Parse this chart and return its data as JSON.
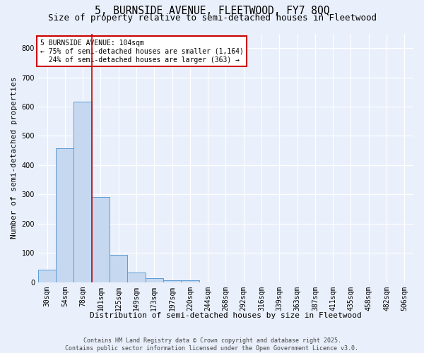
{
  "title1": "5, BURNSIDE AVENUE, FLEETWOOD, FY7 8QQ",
  "title2": "Size of property relative to semi-detached houses in Fleetwood",
  "xlabel": "Distribution of semi-detached houses by size in Fleetwood",
  "ylabel": "Number of semi-detached properties",
  "bar_labels": [
    "30sqm",
    "54sqm",
    "78sqm",
    "101sqm",
    "125sqm",
    "149sqm",
    "173sqm",
    "197sqm",
    "220sqm",
    "244sqm",
    "268sqm",
    "292sqm",
    "316sqm",
    "339sqm",
    "363sqm",
    "387sqm",
    "411sqm",
    "435sqm",
    "458sqm",
    "482sqm",
    "506sqm"
  ],
  "bar_values": [
    43,
    458,
    617,
    290,
    93,
    33,
    13,
    7,
    7,
    0,
    0,
    0,
    0,
    0,
    0,
    0,
    0,
    0,
    0,
    0,
    0
  ],
  "bar_color": "#c5d8f0",
  "bar_edge_color": "#5b9bd5",
  "background_color": "#eaf0fb",
  "grid_color": "#ffffff",
  "vline_x_index": 2.5,
  "vline_color": "#cc0000",
  "annotation_text": "5 BURNSIDE AVENUE: 104sqm\n← 75% of semi-detached houses are smaller (1,164)\n  24% of semi-detached houses are larger (363) →",
  "annotation_box_facecolor": "#ffffff",
  "annotation_box_edgecolor": "#cc0000",
  "footer1": "Contains HM Land Registry data © Crown copyright and database right 2025.",
  "footer2": "Contains public sector information licensed under the Open Government Licence v3.0.",
  "ylim": [
    0,
    850
  ],
  "yticks": [
    0,
    100,
    200,
    300,
    400,
    500,
    600,
    700,
    800
  ],
  "title1_fontsize": 10.5,
  "title2_fontsize": 9,
  "axis_fontsize": 8,
  "tick_fontsize": 7,
  "annotation_fontsize": 7,
  "footer_fontsize": 6
}
